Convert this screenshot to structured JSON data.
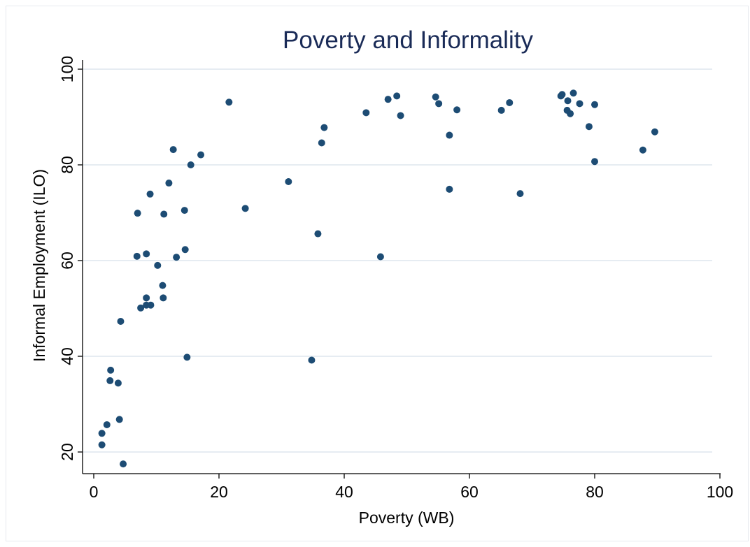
{
  "chart_data": {
    "type": "scatter",
    "title": "Poverty and Informality",
    "xlabel": "Poverty (WB)",
    "ylabel": "Informal Employment (ILO)",
    "xlim": [
      0,
      100
    ],
    "ylim": [
      17.5,
      100
    ],
    "xticks": [
      0,
      20,
      40,
      60,
      80,
      100
    ],
    "yticks": [
      20,
      40,
      60,
      80,
      100
    ],
    "grid": "horizontal",
    "colors": {
      "marker": "#1d4c74",
      "title": "#1a2b57",
      "grid": "#e6ecf2"
    },
    "points": [
      [
        1.3,
        21.5
      ],
      [
        1.3,
        23.9
      ],
      [
        2.1,
        25.7
      ],
      [
        2.6,
        34.9
      ],
      [
        2.7,
        37.1
      ],
      [
        3.9,
        34.4
      ],
      [
        4.1,
        26.8
      ],
      [
        4.3,
        47.3
      ],
      [
        4.7,
        17.5
      ],
      [
        6.9,
        60.9
      ],
      [
        7.0,
        69.9
      ],
      [
        7.5,
        50.1
      ],
      [
        8.4,
        50.7
      ],
      [
        8.4,
        52.2
      ],
      [
        8.4,
        61.4
      ],
      [
        9.0,
        73.9
      ],
      [
        9.1,
        50.7
      ],
      [
        10.2,
        59.0
      ],
      [
        11.0,
        54.8
      ],
      [
        11.1,
        52.2
      ],
      [
        11.2,
        69.7
      ],
      [
        12.0,
        76.2
      ],
      [
        12.7,
        83.2
      ],
      [
        13.2,
        60.7
      ],
      [
        14.5,
        70.5
      ],
      [
        14.6,
        62.3
      ],
      [
        14.9,
        39.8
      ],
      [
        15.5,
        80.0
      ],
      [
        17.1,
        82.1
      ],
      [
        21.6,
        93.1
      ],
      [
        24.2,
        70.9
      ],
      [
        31.1,
        76.5
      ],
      [
        34.8,
        39.2
      ],
      [
        35.8,
        65.6
      ],
      [
        36.4,
        84.6
      ],
      [
        36.8,
        87.8
      ],
      [
        43.5,
        90.9
      ],
      [
        45.8,
        60.8
      ],
      [
        47.0,
        93.7
      ],
      [
        48.4,
        94.4
      ],
      [
        49.0,
        90.3
      ],
      [
        54.6,
        94.2
      ],
      [
        55.1,
        92.8
      ],
      [
        56.8,
        86.2
      ],
      [
        56.8,
        74.9
      ],
      [
        58.0,
        91.5
      ],
      [
        65.1,
        91.4
      ],
      [
        66.4,
        93.0
      ],
      [
        68.1,
        74.0
      ],
      [
        74.6,
        94.4
      ],
      [
        74.8,
        94.7
      ],
      [
        75.6,
        91.4
      ],
      [
        75.7,
        93.4
      ],
      [
        76.1,
        90.7
      ],
      [
        76.6,
        95.0
      ],
      [
        77.6,
        92.8
      ],
      [
        79.1,
        88.0
      ],
      [
        80.0,
        92.6
      ],
      [
        80.0,
        80.7
      ],
      [
        87.7,
        83.1
      ],
      [
        89.6,
        86.9
      ]
    ]
  }
}
